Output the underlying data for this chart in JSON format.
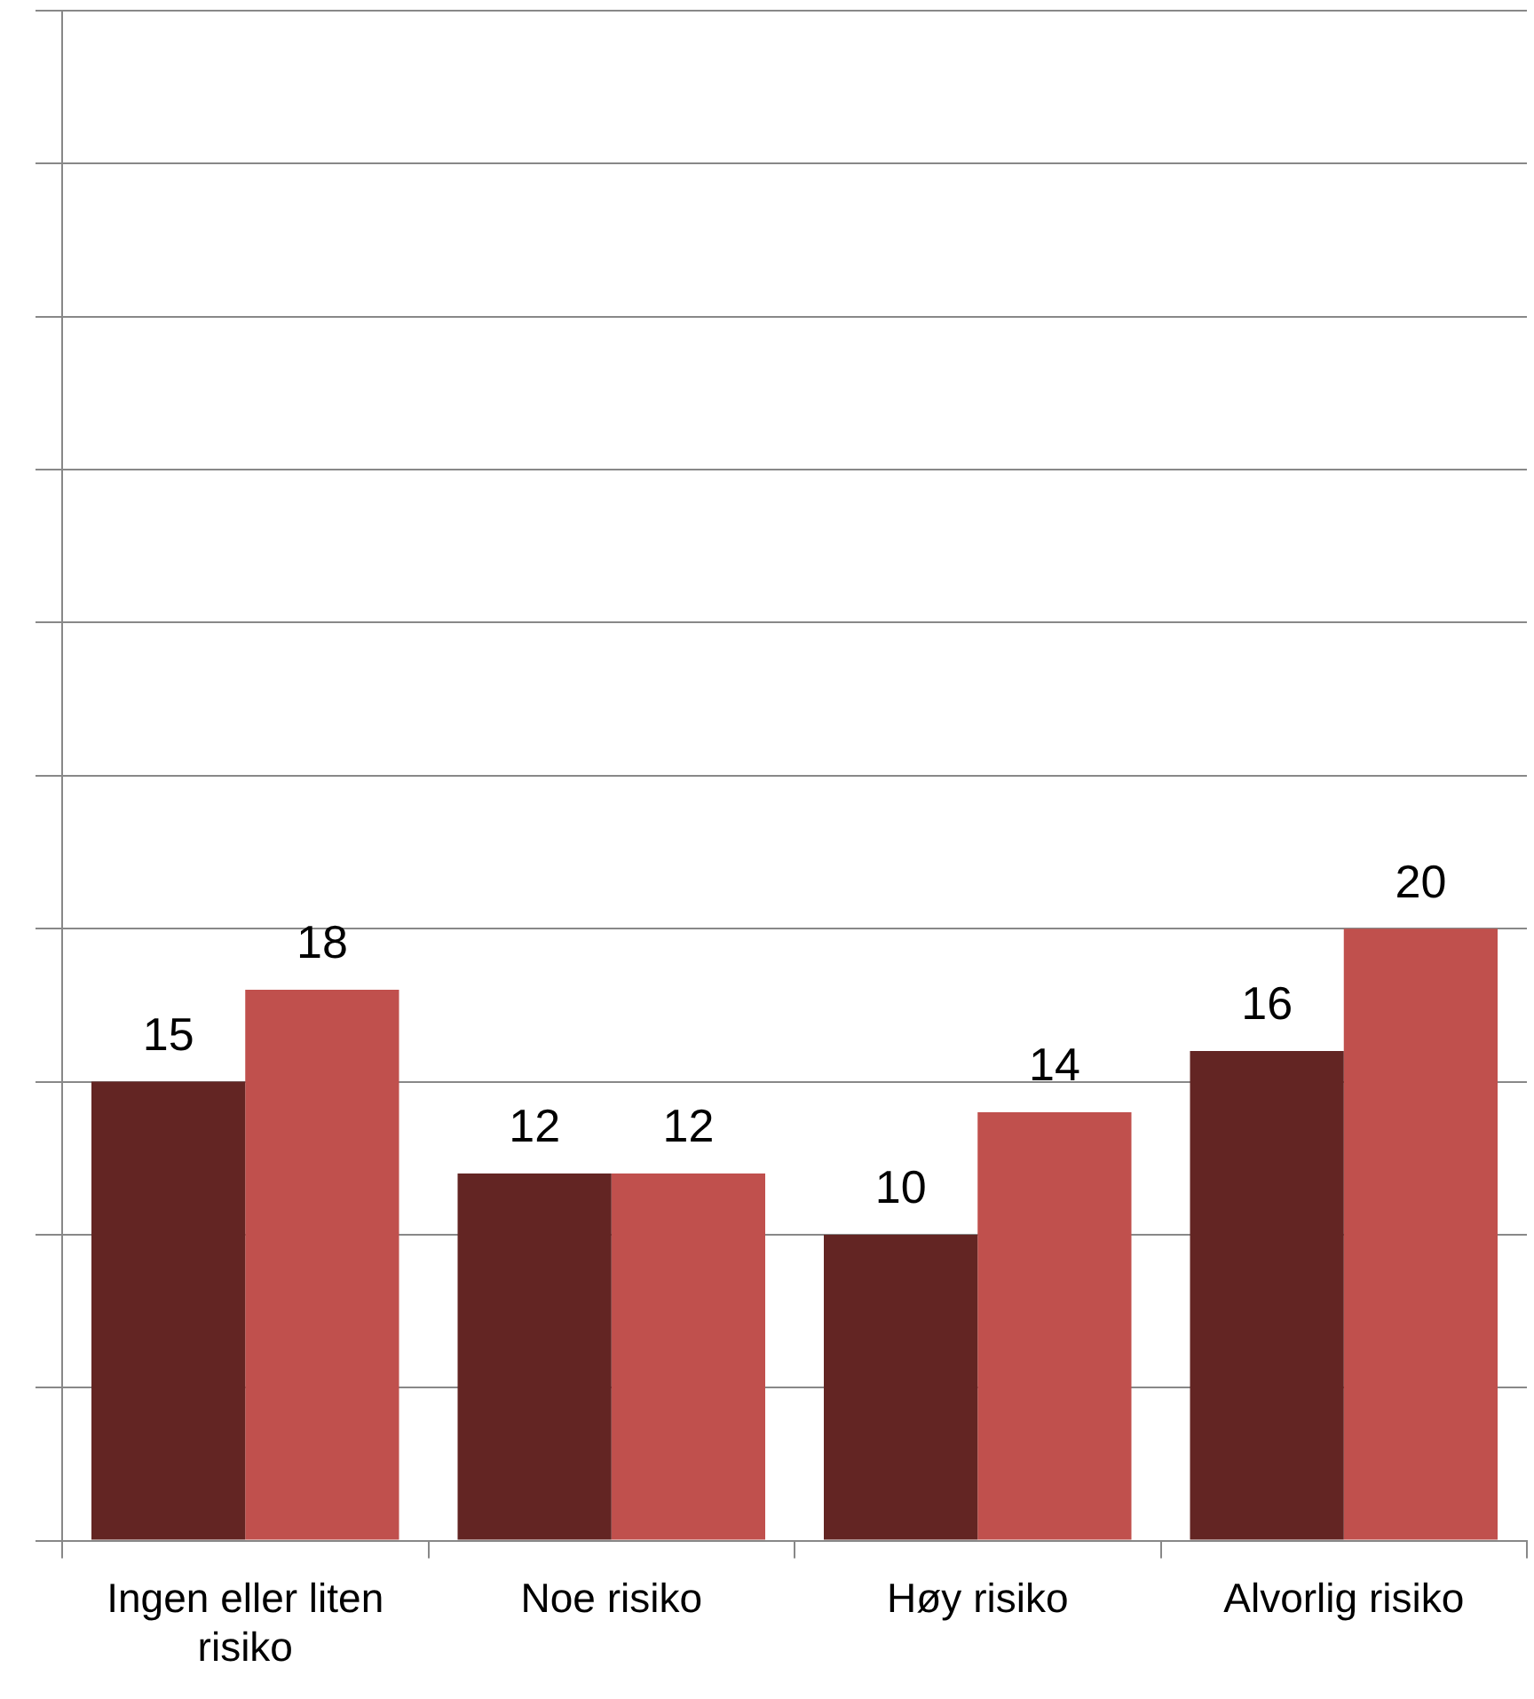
{
  "chart_data": {
    "type": "bar",
    "categories": [
      "Ingen eller liten risiko",
      "Noe risiko",
      "Høy risiko",
      "Alvorlig risiko"
    ],
    "series": [
      {
        "color": "#632523",
        "values": [
          15,
          12,
          10,
          16
        ]
      },
      {
        "color": "#c0504d",
        "values": [
          18,
          12,
          14,
          20
        ]
      }
    ],
    "ylim": [
      0,
      50
    ],
    "yticks": [
      0,
      5,
      10,
      15,
      20,
      25,
      30,
      35,
      40,
      45,
      50
    ],
    "tick_labels": "x",
    "grid": "y",
    "legend": false,
    "data_labels": true
  }
}
